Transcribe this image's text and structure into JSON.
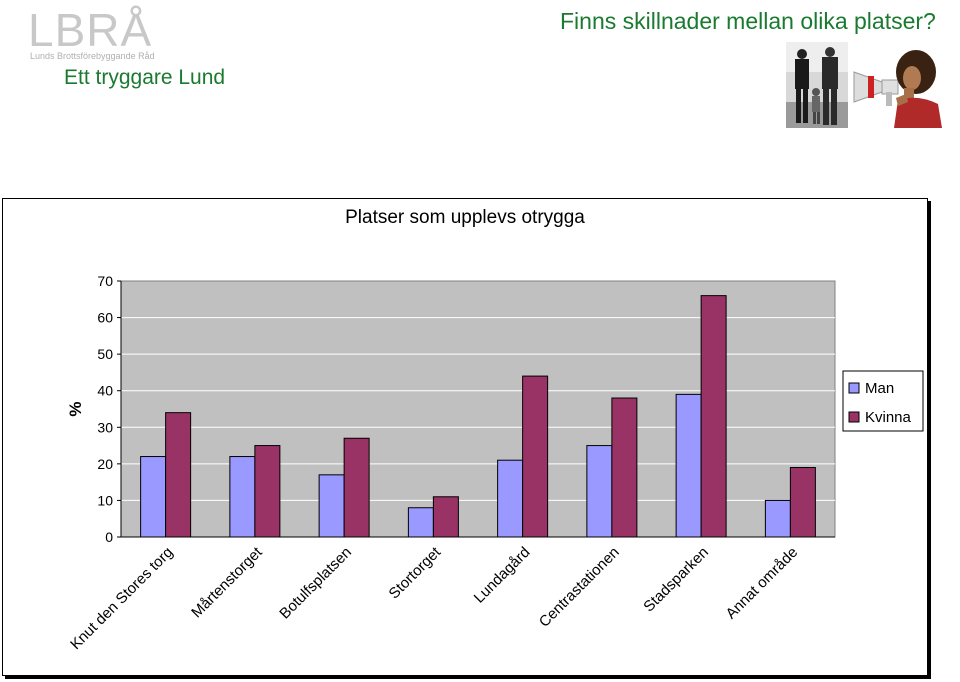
{
  "header": {
    "logo_text": "LBRÅ",
    "logo_subtext": "Lunds Brottsförebyggande Råd",
    "tagline": "Ett tryggare Lund",
    "title": "Finns skillnader mellan olika platser?"
  },
  "images": [
    {
      "name": "men-and-child-photo",
      "description": "black and white photo"
    },
    {
      "name": "woman-with-megaphone-photo",
      "description": "woman shouting into megaphone"
    }
  ],
  "colors": {
    "header_text": "#1a7a30",
    "logo": "#c8c8c8",
    "plot_bg": "#c0c0c0",
    "man": "#9999ff",
    "kvinna": "#993366"
  },
  "chart_data": {
    "type": "bar",
    "title": "Platser som upplevs otrygga",
    "ylabel": "%",
    "xlabel": "",
    "ylim": [
      0,
      70
    ],
    "yticks": [
      0,
      10,
      20,
      30,
      40,
      50,
      60,
      70
    ],
    "grid": true,
    "legend": "right",
    "categories": [
      "Knut den Stores torg",
      "Mårtenstorget",
      "Botulfsplatsen",
      "Stortorget",
      "Lundagård",
      "Centrastationen",
      "Stadsparken",
      "Annat område"
    ],
    "series": [
      {
        "name": "Man",
        "color": "#9999ff",
        "values": [
          22,
          22,
          17,
          8,
          21,
          25,
          39,
          10
        ]
      },
      {
        "name": "Kvinna",
        "color": "#993366",
        "values": [
          34,
          25,
          27,
          11,
          44,
          38,
          66,
          19
        ]
      }
    ]
  }
}
